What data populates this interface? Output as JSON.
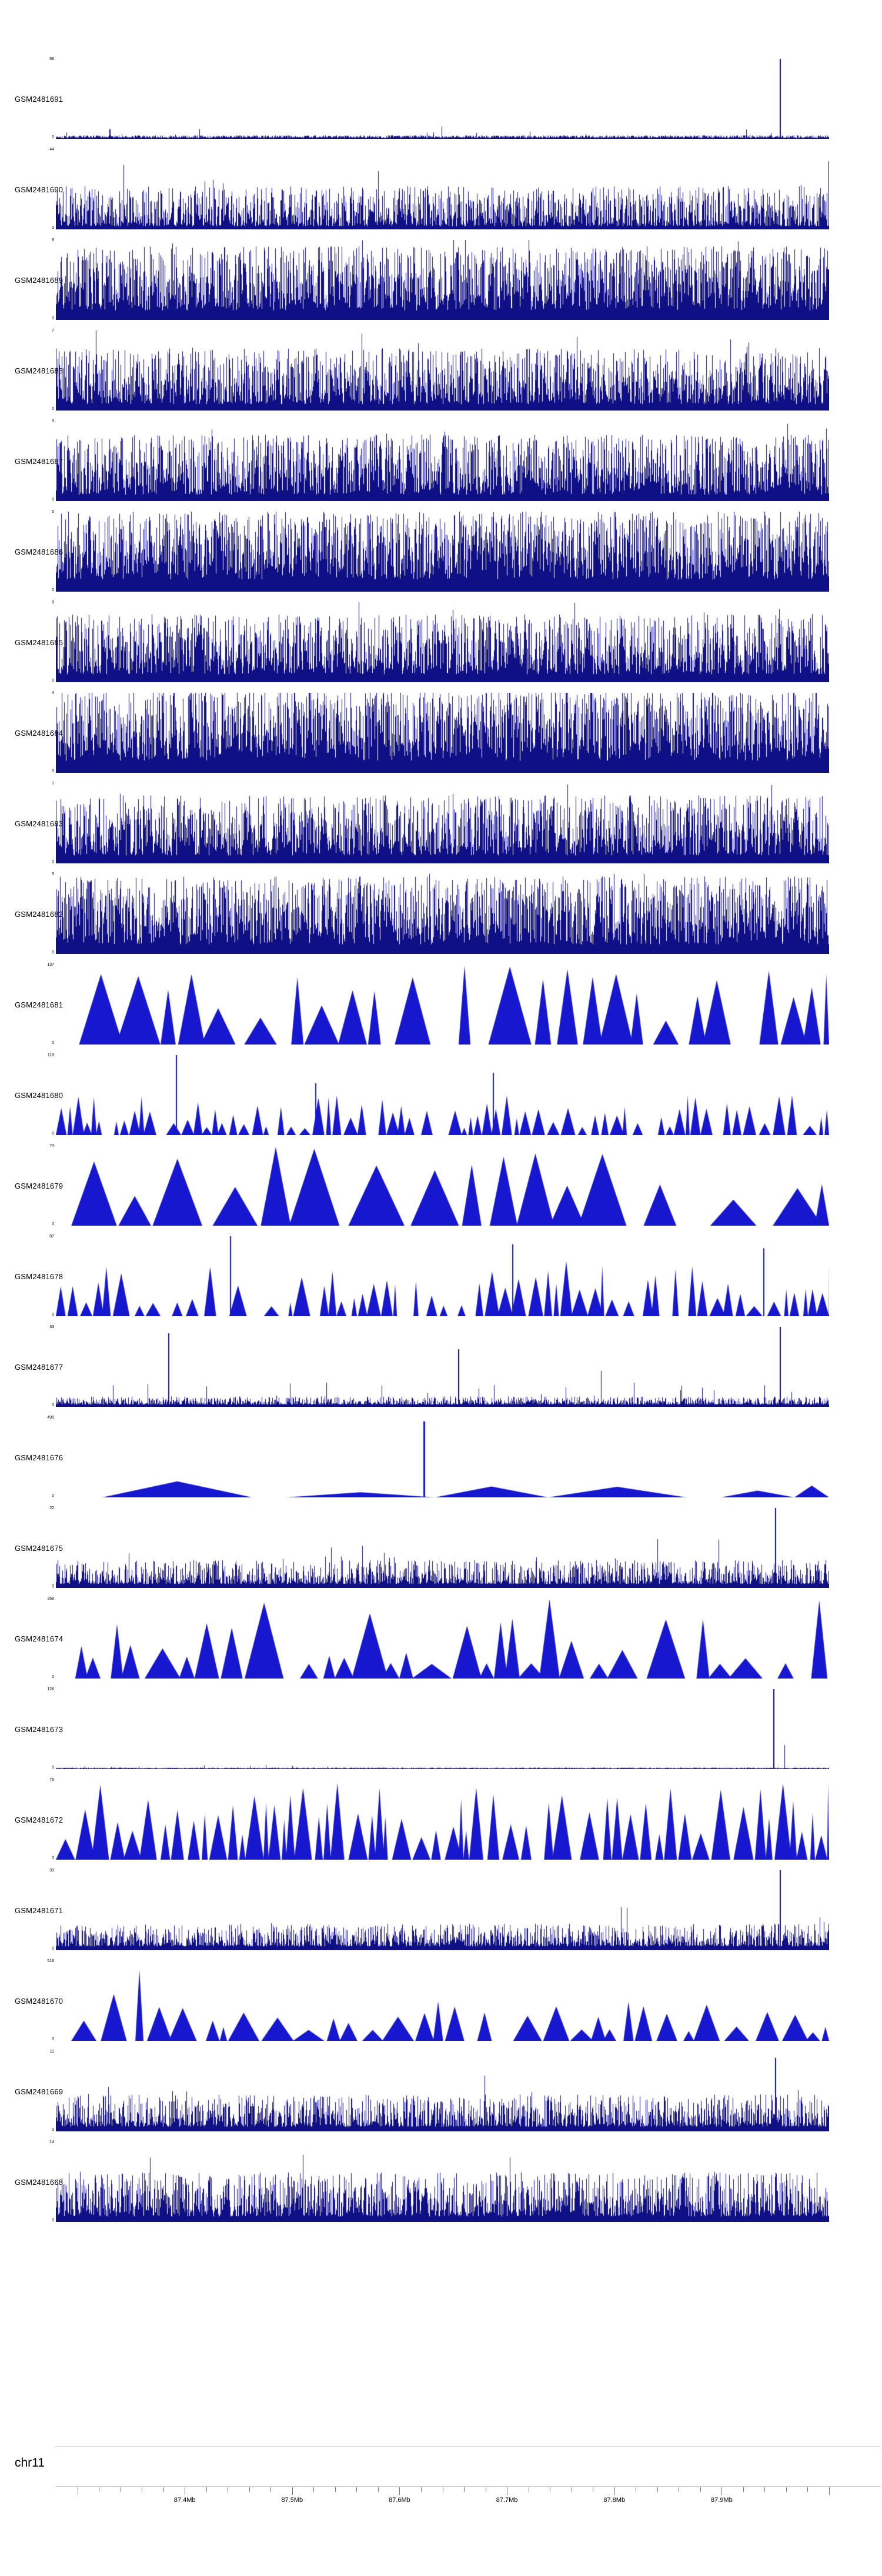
{
  "page": {
    "background": "#ffffff"
  },
  "colors": {
    "dense": "#0f0f86",
    "peak": "#1717cf",
    "axis_line": "#777777",
    "text": "#000000"
  },
  "chart_data": {
    "type": "area",
    "title": "",
    "chromosome": "chr11",
    "xlabel": "chr11 position",
    "x_axis": {
      "start": 87.28,
      "end": 88.0,
      "minor_step": 0.02,
      "labels": [
        {
          "value": 87.4,
          "label": "87.4Mb"
        },
        {
          "value": 87.5,
          "label": "87.5Mb"
        },
        {
          "value": 87.6,
          "label": "87.6Mb"
        },
        {
          "value": 87.7,
          "label": "87.7Mb"
        },
        {
          "value": 87.8,
          "label": "87.8Mb"
        },
        {
          "value": 87.9,
          "label": "87.9Mb"
        }
      ]
    },
    "tracks": [
      {
        "label": "GSM2481691",
        "ymax": "56",
        "ymin": "0",
        "style": "noise",
        "seed": 101,
        "params": {
          "base": 0.035,
          "tall_p": 0.015,
          "tall_mult": 3
        },
        "spikes": [
          {
            "x": 0.936,
            "h": 1.0,
            "w": 2
          },
          {
            "x": 0.07,
            "h": 0.12,
            "w": 1
          }
        ]
      },
      {
        "label": "GSM2481690",
        "ymax": "44",
        "ymin": "0",
        "style": "dense",
        "seed": 102,
        "params": {
          "base": 0.04,
          "amp": 0.5,
          "skew": 1.7,
          "tall_p": 0.03,
          "tall_amp": 0.35
        }
      },
      {
        "label": "GSM2481689",
        "ymax": "8",
        "ymin": "0",
        "style": "dense",
        "seed": 103,
        "params": {
          "base": 0.12,
          "amp": 0.8,
          "skew": 1.15,
          "tall_p": 0.05,
          "tall_amp": 0.2
        }
      },
      {
        "label": "GSM2481688",
        "ymax": "7",
        "ymin": "0",
        "style": "dense",
        "seed": 104,
        "params": {
          "base": 0.08,
          "amp": 0.7,
          "skew": 1.4,
          "tall_p": 0.04,
          "tall_amp": 0.3
        }
      },
      {
        "label": "GSM2481687",
        "ymax": "9",
        "ymin": "0",
        "style": "dense",
        "seed": 105,
        "params": {
          "base": 0.08,
          "amp": 0.75,
          "skew": 1.3,
          "tall_p": 0.04,
          "tall_amp": 0.25
        }
      },
      {
        "label": "GSM2481686",
        "ymax": "5",
        "ymin": "0",
        "style": "dense",
        "seed": 106,
        "params": {
          "base": 0.15,
          "amp": 0.85,
          "skew": 1.05,
          "tall_p": 0.05,
          "tall_amp": 0.15
        }
      },
      {
        "label": "GSM2481685",
        "ymax": "8",
        "ymin": "0",
        "style": "dense",
        "seed": 107,
        "params": {
          "base": 0.1,
          "amp": 0.75,
          "skew": 1.3,
          "tall_p": 0.04,
          "tall_amp": 0.25
        }
      },
      {
        "label": "GSM2481684",
        "ymax": "4",
        "ymin": "0",
        "style": "dense",
        "seed": 108,
        "params": {
          "base": 0.15,
          "amp": 0.9,
          "skew": 1.0,
          "tall_p": 0.05,
          "tall_amp": 0.1
        }
      },
      {
        "label": "GSM2481683",
        "ymax": "7",
        "ymin": "0",
        "style": "dense",
        "seed": 109,
        "params": {
          "base": 0.1,
          "amp": 0.75,
          "skew": 1.3,
          "tall_p": 0.04,
          "tall_amp": 0.25
        }
      },
      {
        "label": "GSM2481682",
        "ymax": "5",
        "ymin": "0",
        "style": "dense",
        "seed": 110,
        "params": {
          "base": 0.12,
          "amp": 0.85,
          "skew": 1.1,
          "tall_p": 0.05,
          "tall_amp": 0.15
        }
      },
      {
        "label": "GSM2481681",
        "ymax": "137",
        "ymin": "0",
        "style": "peaks",
        "seed": 111,
        "params": {
          "x0": 0.03,
          "wmin": 15,
          "wmax": 75,
          "hmin": 0.25,
          "hmax": 1.0,
          "hskew": 0.8,
          "gap_p": 0.25,
          "gap": 45
        }
      },
      {
        "label": "GSM2481680",
        "ymax": "118",
        "ymin": "0",
        "style": "peaks",
        "seed": 112,
        "params": {
          "x0": 0.0,
          "wmin": 6,
          "wmax": 26,
          "hmin": 0.08,
          "hmax": 0.5,
          "hskew": 1.2,
          "gap_p": 0.3,
          "gap": 25
        },
        "spikes": [
          {
            "x": 0.155,
            "h": 1.0,
            "w": 2
          },
          {
            "x": 0.335,
            "h": 0.65,
            "w": 2
          },
          {
            "x": 0.565,
            "h": 0.78,
            "w": 2
          }
        ]
      },
      {
        "label": "GSM2481679",
        "ymax": "74",
        "ymin": "0",
        "style": "peaks",
        "seed": 113,
        "params": {
          "x0": 0.02,
          "wmin": 20,
          "wmax": 100,
          "hmin": 0.25,
          "hmax": 1.0,
          "hskew": 0.9,
          "gap_p": 0.15,
          "gap": 50
        }
      },
      {
        "label": "GSM2481678",
        "ymax": "87",
        "ymin": "0",
        "style": "peaks",
        "seed": 114,
        "params": {
          "x0": 0.0,
          "wmin": 6,
          "wmax": 30,
          "hmin": 0.12,
          "hmax": 0.7,
          "hskew": 1.2,
          "gap_p": 0.3,
          "gap": 30
        },
        "spikes": [
          {
            "x": 0.225,
            "h": 1.0,
            "w": 2
          },
          {
            "x": 0.59,
            "h": 0.9,
            "w": 2
          },
          {
            "x": 0.915,
            "h": 0.85,
            "w": 2
          }
        ]
      },
      {
        "label": "GSM2481677",
        "ymax": "33",
        "ymin": "0",
        "style": "dense",
        "seed": 115,
        "params": {
          "base": 0.03,
          "amp": 0.1,
          "skew": 2.2,
          "tall_p": 0.02,
          "tall_amp": 0.25
        },
        "spikes": [
          {
            "x": 0.145,
            "h": 0.92,
            "w": 2
          },
          {
            "x": 0.35,
            "h": 0.3,
            "w": 1
          },
          {
            "x": 0.52,
            "h": 0.72,
            "w": 2
          },
          {
            "x": 0.705,
            "h": 0.45,
            "w": 1
          },
          {
            "x": 0.936,
            "h": 1.0,
            "w": 2
          }
        ]
      },
      {
        "label": "GSM2481676",
        "ymax": "495",
        "ymin": "0",
        "style": "broad",
        "seed": 116,
        "params": {
          "x0": 0.06,
          "wmin": 0.06,
          "wmax": 0.2,
          "hmin": 0.06,
          "hmax": 0.22,
          "gap_p": 0.4,
          "gap": 0.06
        },
        "spikes": [
          {
            "x": 0.475,
            "h": 0.95,
            "w": 3
          }
        ]
      },
      {
        "label": "GSM2481675",
        "ymax": "22",
        "ymin": "0",
        "style": "dense",
        "seed": 117,
        "params": {
          "base": 0.05,
          "amp": 0.3,
          "skew": 2.0,
          "tall_p": 0.03,
          "tall_amp": 0.3
        },
        "spikes": [
          {
            "x": 0.93,
            "h": 1.0,
            "w": 2
          }
        ]
      },
      {
        "label": "GSM2481674",
        "ymax": "358",
        "ymin": "0",
        "style": "peaks",
        "seed": 118,
        "params": {
          "x0": 0.025,
          "wmin": 18,
          "wmax": 70,
          "hmin": 0.18,
          "hmax": 1.0,
          "hskew": 1.2,
          "gap_p": 0.3,
          "gap": 45,
          "boost": [
            0.04,
            0.12,
            1.8
          ]
        }
      },
      {
        "label": "GSM2481673",
        "ymax": "126",
        "ymin": "0",
        "style": "noise",
        "seed": 119,
        "params": {
          "base": 0.015,
          "tall_p": 0.01,
          "tall_mult": 2.5
        },
        "spikes": [
          {
            "x": 0.928,
            "h": 1.0,
            "w": 2
          },
          {
            "x": 0.942,
            "h": 0.3,
            "w": 1
          }
        ]
      },
      {
        "label": "GSM2481672",
        "ymax": "76",
        "ymin": "0",
        "style": "peaks",
        "seed": 120,
        "params": {
          "x0": 0.0,
          "wmin": 8,
          "wmax": 34,
          "hmin": 0.25,
          "hmax": 1.0,
          "hskew": 1.0,
          "gap_p": 0.15,
          "gap": 20
        }
      },
      {
        "label": "GSM2481671",
        "ymax": "33",
        "ymin": "0",
        "style": "dense",
        "seed": 121,
        "params": {
          "base": 0.05,
          "amp": 0.28,
          "skew": 2.0,
          "tall_p": 0.02,
          "tall_amp": 0.3
        },
        "spikes": [
          {
            "x": 0.936,
            "h": 1.0,
            "w": 2
          }
        ]
      },
      {
        "label": "GSM2481670",
        "ymax": "516",
        "ymin": "0",
        "style": "peaks",
        "seed": 122,
        "params": {
          "x0": 0.02,
          "wmin": 12,
          "wmax": 55,
          "hmin": 0.1,
          "hmax": 0.5,
          "hskew": 1.1,
          "gap_p": 0.3,
          "gap": 40,
          "boost": [
            0.05,
            0.2,
            2.4
          ]
        }
      },
      {
        "label": "GSM2481669",
        "ymax": "11",
        "ymin": "0",
        "style": "dense",
        "seed": 123,
        "params": {
          "base": 0.06,
          "amp": 0.4,
          "skew": 1.8,
          "tall_p": 0.03,
          "tall_amp": 0.3
        },
        "spikes": [
          {
            "x": 0.93,
            "h": 0.92,
            "w": 2
          }
        ]
      },
      {
        "label": "GSM2481668",
        "ymax": "14",
        "ymin": "0",
        "style": "dense",
        "seed": 124,
        "params": {
          "base": 0.07,
          "amp": 0.55,
          "skew": 1.6,
          "tall_p": 0.03,
          "tall_amp": 0.3
        }
      }
    ]
  }
}
